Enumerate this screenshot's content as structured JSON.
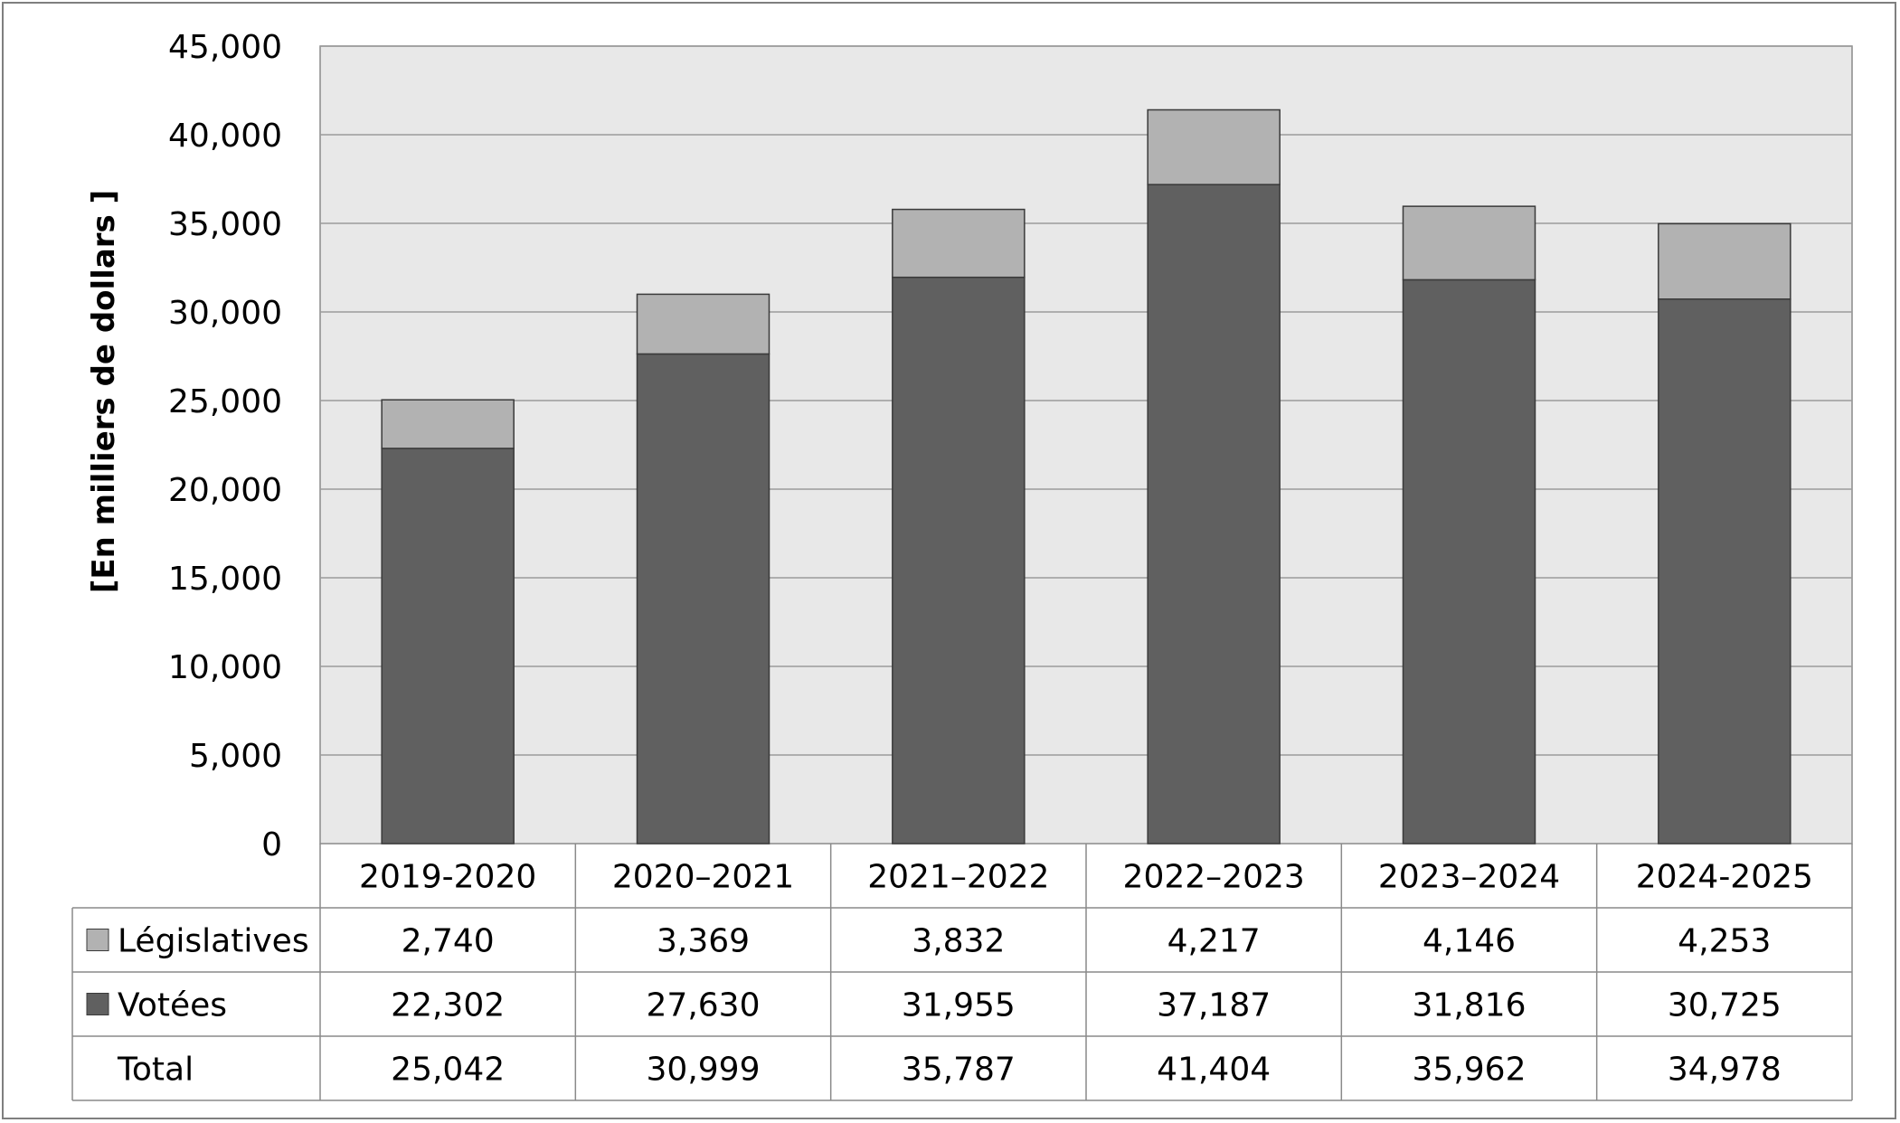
{
  "chart_data": {
    "type": "bar",
    "stacked": true,
    "ylabel": "[En milliers de dollars ]",
    "ylim": [
      0,
      45000
    ],
    "ytick_step": 5000,
    "yticks": [
      "0",
      "5,000",
      "10,000",
      "15,000",
      "20,000",
      "25,000",
      "30,000",
      "35,000",
      "40,000",
      "45,000"
    ],
    "grid": true,
    "categories": [
      "2019-2020",
      "2020–2021",
      "2021–2022",
      "2022–2023",
      "2023–2024",
      "2024-2025"
    ],
    "series": [
      {
        "name": "Votées",
        "color": "#606060",
        "values": [
          22302,
          27630,
          31955,
          37187,
          31816,
          30725
        ],
        "labels": [
          "22,302",
          "27,630",
          "31,955",
          "37,187",
          "31,816",
          "30,725"
        ]
      },
      {
        "name": "Législatives",
        "color": "#b2b2b2",
        "values": [
          2740,
          3369,
          3832,
          4217,
          4146,
          4253
        ],
        "labels": [
          "2,740",
          "3,369",
          "3,832",
          "4,217",
          "4,146",
          "4,253"
        ]
      }
    ],
    "total": {
      "name": "Total",
      "labels": [
        "25,042",
        "30,999",
        "35,787",
        "41,404",
        "35,962",
        "34,978"
      ]
    },
    "plot_background": "#e8e8e8",
    "gridline_color": "#9a9a9a"
  }
}
